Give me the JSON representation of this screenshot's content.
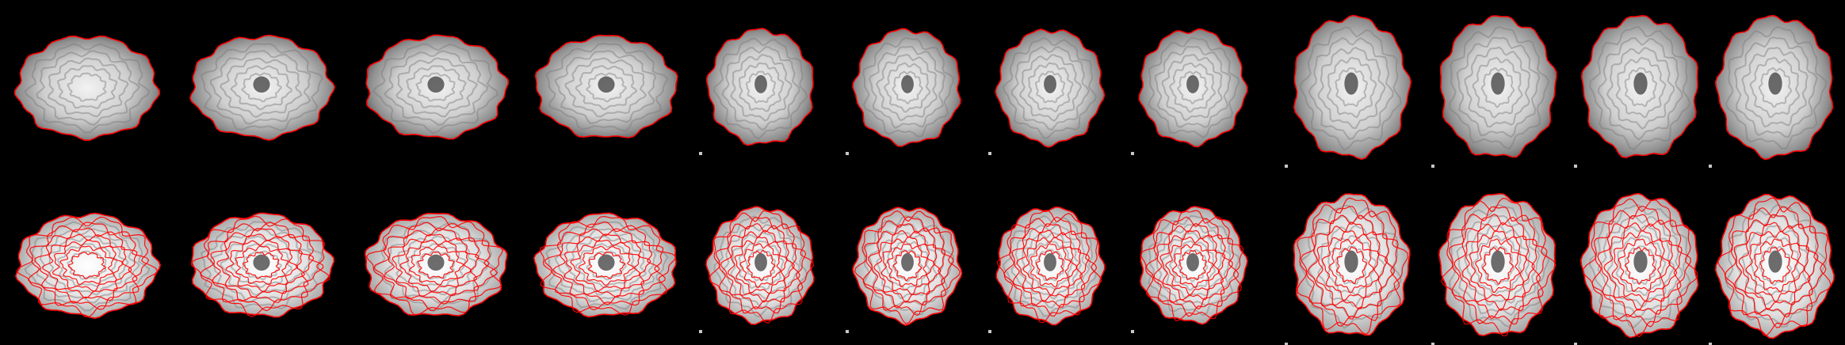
{
  "figure": {
    "background": "#000000",
    "outline_color": "#ff0000",
    "rows": [
      {
        "name": "top-row",
        "outline_style": "outer-contour",
        "slices": [
          {
            "view": "sagittal"
          },
          {
            "view": "sagittal"
          },
          {
            "view": "sagittal"
          },
          {
            "view": "sagittal"
          },
          {
            "view": "coronal"
          },
          {
            "view": "coronal"
          },
          {
            "view": "coronal"
          },
          {
            "view": "coronal"
          },
          {
            "view": "axial"
          },
          {
            "view": "axial"
          },
          {
            "view": "axial"
          },
          {
            "view": "axial"
          }
        ]
      },
      {
        "name": "bottom-row",
        "outline_style": "tissue-boundaries",
        "slices": [
          {
            "view": "sagittal"
          },
          {
            "view": "sagittal"
          },
          {
            "view": "sagittal"
          },
          {
            "view": "sagittal"
          },
          {
            "view": "coronal"
          },
          {
            "view": "coronal"
          },
          {
            "view": "coronal"
          },
          {
            "view": "coronal"
          },
          {
            "view": "axial"
          },
          {
            "view": "axial"
          },
          {
            "view": "axial"
          },
          {
            "view": "axial"
          }
        ]
      }
    ]
  }
}
